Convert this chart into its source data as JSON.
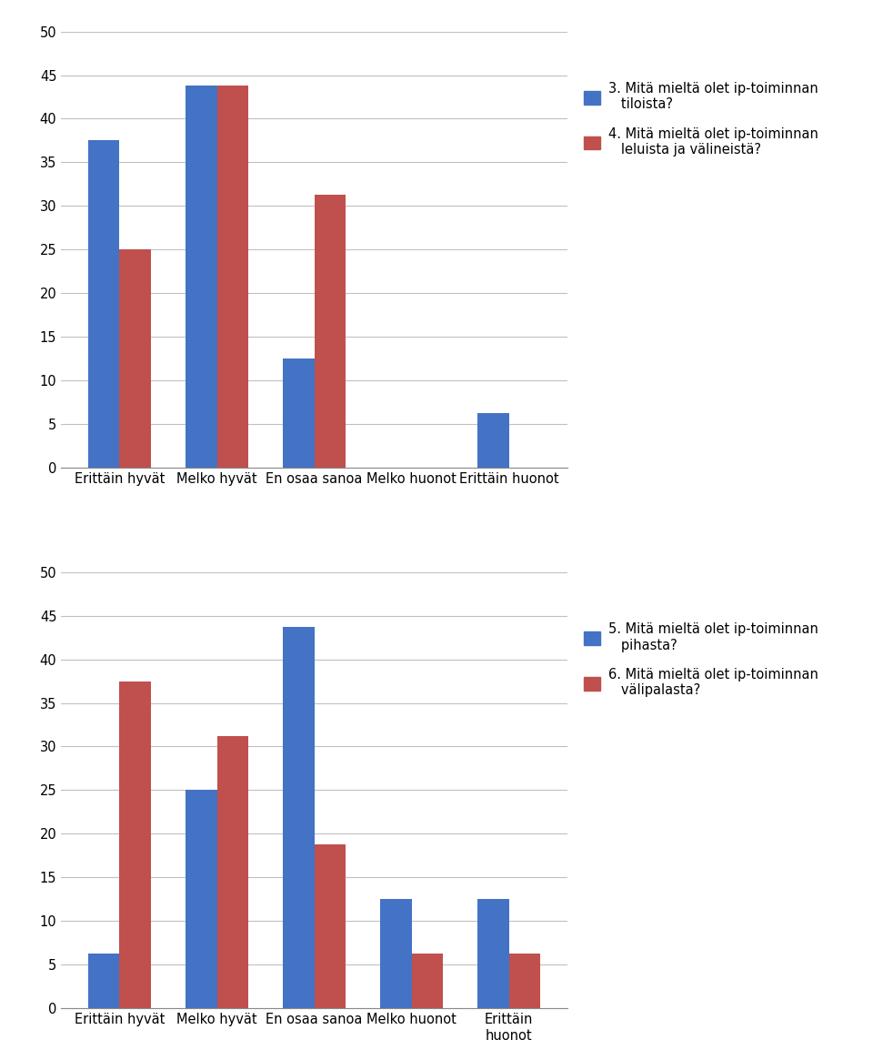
{
  "chart1": {
    "categories": [
      "Erittäin hyvät",
      "Melko hyvät",
      "En osaa sanoa",
      "Melko huonot",
      "Erittäin huonot"
    ],
    "blue_values": [
      37.5,
      43.75,
      12.5,
      0,
      6.25
    ],
    "red_values": [
      25,
      43.75,
      31.25,
      0,
      0
    ],
    "legend1": "3. Mitä mieltä olet ip-toiminnan\n   tiloista?",
    "legend2": "4. Mitä mieltä olet ip-toiminnan\n   leluista ja välineistä?"
  },
  "chart2": {
    "categories": [
      "Erittäin hyvät",
      "Melko hyvät",
      "En osaa sanoa",
      "Melko huonot",
      "Erittäin\nhuonot"
    ],
    "blue_values": [
      6.25,
      25,
      43.75,
      12.5,
      12.5
    ],
    "red_values": [
      37.5,
      31.25,
      18.75,
      6.25,
      6.25
    ],
    "legend1": "5. Mitä mieltä olet ip-toiminnan\n   pihasta?",
    "legend2": "6. Mitä mieltä olet ip-toiminnan\n   välipalasta?"
  },
  "blue_color": "#4472C4",
  "red_color": "#C0504D",
  "ylim": [
    0,
    50
  ],
  "yticks": [
    0,
    5,
    10,
    15,
    20,
    25,
    30,
    35,
    40,
    45,
    50
  ],
  "background_color": "#FFFFFF",
  "plot_bg_color": "#FFFFFF",
  "grid_color": "#C0C0C0",
  "bar_width": 0.32
}
